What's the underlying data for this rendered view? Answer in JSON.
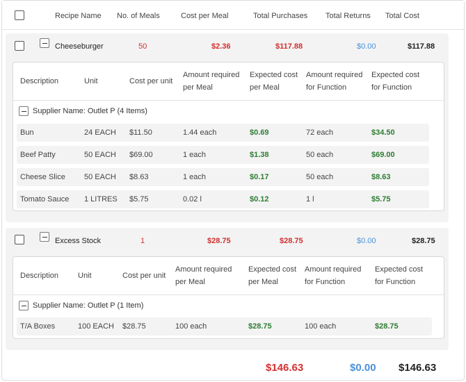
{
  "header": {
    "recipe_name": "Recipe Name",
    "no_of_meals": "No. of Meals",
    "cost_per_meal": "Cost per Meal",
    "total_purchases": "Total Purchases",
    "total_returns": "Total Returns",
    "total_cost": "Total Cost"
  },
  "detail_columns": {
    "description": "Description",
    "unit": "Unit",
    "cost_per_unit": "Cost per unit",
    "amount_required_line1": "Amount required",
    "amount_required_line2": "per Meal",
    "expected_cost_line1": "Expected cost",
    "expected_cost_line2": "per Meal",
    "amount_function_line1": "Amount required",
    "amount_function_line2": "for Function",
    "expected_function_line1": "Expected cost",
    "expected_function_line2": "for Function"
  },
  "recipes": [
    {
      "name": "Cheeseburger",
      "meals": "50",
      "cost_per_meal": "$2.36",
      "total_purchases": "$117.88",
      "total_returns": "$0.00",
      "total_cost": "$117.88",
      "supplier_label": "Supplier Name: Outlet P (4 Items)",
      "items": [
        {
          "description": "Bun",
          "unit": "24 EACH",
          "cost_per_unit": "$11.50",
          "amount_per_meal": "1.44 each",
          "expected_cost_per_meal": "$0.69",
          "amount_for_function": "72 each",
          "expected_cost_for_function": "$34.50"
        },
        {
          "description": "Beef Patty",
          "unit": "50 EACH",
          "cost_per_unit": "$69.00",
          "amount_per_meal": "1 each",
          "expected_cost_per_meal": "$1.38",
          "amount_for_function": "50 each",
          "expected_cost_for_function": "$69.00"
        },
        {
          "description": "Cheese Slice",
          "unit": "50 EACH",
          "cost_per_unit": "$8.63",
          "amount_per_meal": "1 each",
          "expected_cost_per_meal": "$0.17",
          "amount_for_function": "50 each",
          "expected_cost_for_function": "$8.63"
        },
        {
          "description": "Tomato Sauce",
          "unit": "1 LITRES",
          "cost_per_unit": "$5.75",
          "amount_per_meal": "0.02 l",
          "expected_cost_per_meal": "$0.12",
          "amount_for_function": "1 l",
          "expected_cost_for_function": "$5.75"
        }
      ]
    },
    {
      "name": "Excess Stock",
      "meals": "1",
      "cost_per_meal": "$28.75",
      "total_purchases": "$28.75",
      "total_returns": "$0.00",
      "total_cost": "$28.75",
      "supplier_label": "Supplier Name: Outlet P (1 Item)",
      "items": [
        {
          "description": "T/A Boxes",
          "unit": "100 EACH",
          "cost_per_unit": "$28.75",
          "amount_per_meal": "100 each",
          "expected_cost_per_meal": "$28.75",
          "amount_for_function": "100 each",
          "expected_cost_for_function": "$28.75"
        }
      ]
    }
  ],
  "totals": {
    "total_purchases": "$146.63",
    "total_returns": "$0.00",
    "total_cost": "$146.63"
  },
  "colors": {
    "red": "#d32f2f",
    "blue": "#4a90d9",
    "green": "#2e7d32"
  }
}
